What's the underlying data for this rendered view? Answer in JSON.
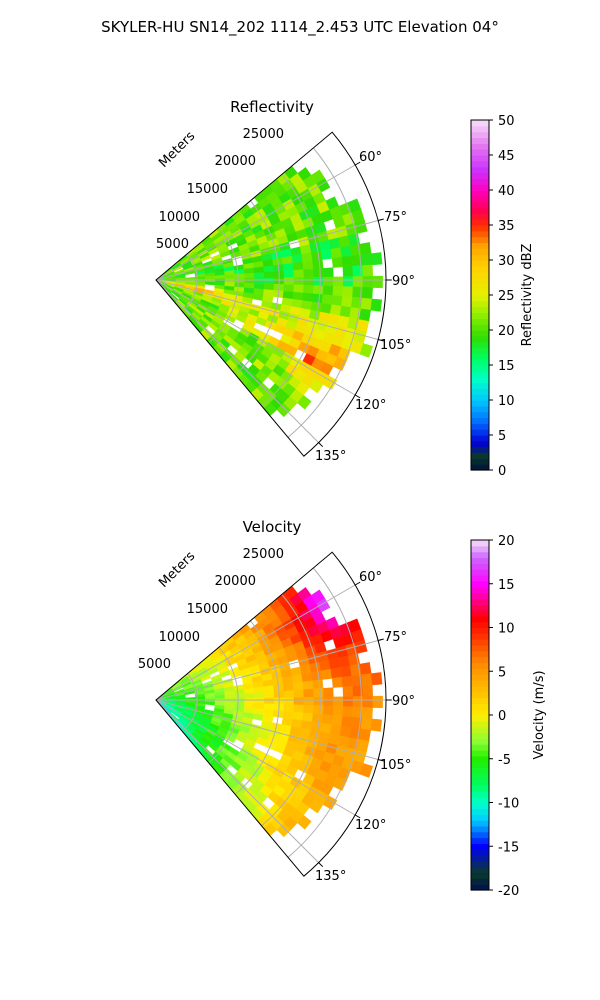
{
  "figure": {
    "title": "SKYLER-HU  SN14_202  1114_2.453 UTC Elevation 04°"
  },
  "chart_data": [
    {
      "type": "heatmap",
      "subtype": "polar-sector (PPI radar scan)",
      "title": "Reflectivity",
      "radial_axis_label": "Meters",
      "radial_ticks": [
        5000,
        10000,
        15000,
        20000,
        25000
      ],
      "radial_tick_labels": [
        "5000",
        "10000",
        "15000",
        "20000",
        "25000"
      ],
      "rmax": 28000,
      "azimuth_range_deg": [
        50,
        140
      ],
      "azimuth_ticks": [
        60,
        75,
        90,
        105,
        120,
        135
      ],
      "azimuth_tick_labels": [
        "60°",
        "75°",
        "90°",
        "105°",
        "120°",
        "135°"
      ],
      "grid": true,
      "colorbar": {
        "label": "Reflectivity dBZ",
        "range": [
          0,
          50
        ],
        "ticks": [
          0,
          5,
          10,
          15,
          20,
          25,
          30,
          35,
          40,
          45,
          50
        ],
        "tick_labels": [
          "0",
          "5",
          "10",
          "15",
          "20",
          "25",
          "30",
          "35",
          "40",
          "45",
          "50"
        ],
        "colormap": "NWSRef"
      },
      "field_summary": {
        "typical_value": 24,
        "core_value": 34,
        "core_near_azimuth_deg": 117,
        "core_near_range_m": 22000,
        "near_radar_band_azimuth_deg": 103,
        "near_radar_band_value": 36,
        "valid_range_m": [
          0,
          27000
        ]
      }
    },
    {
      "type": "heatmap",
      "subtype": "polar-sector (PPI radar scan)",
      "title": "Velocity",
      "radial_axis_label": "Meters",
      "radial_ticks": [
        5000,
        10000,
        15000,
        20000,
        25000
      ],
      "radial_tick_labels": [
        "5000",
        "10000",
        "15000",
        "20000",
        "25000"
      ],
      "rmax": 28000,
      "azimuth_range_deg": [
        50,
        140
      ],
      "azimuth_ticks": [
        60,
        75,
        90,
        105,
        120,
        135
      ],
      "azimuth_tick_labels": [
        "60°",
        "75°",
        "90°",
        "105°",
        "120°",
        "135°"
      ],
      "grid": true,
      "colorbar": {
        "label": "Velocity (m/s)",
        "range": [
          -20,
          20
        ],
        "ticks": [
          -20,
          -15,
          -10,
          -5,
          0,
          5,
          10,
          15,
          20
        ],
        "tick_labels": [
          "-20",
          "-15",
          "-10",
          "-5",
          "0",
          "5",
          "10",
          "15",
          "20"
        ],
        "colormap": "NWSVel"
      },
      "field_summary": {
        "near_radar_value": -8,
        "far_field_value": 6,
        "max_value": 14,
        "max_near_azimuth_deg": 62,
        "max_near_range_m": 25000
      }
    }
  ]
}
